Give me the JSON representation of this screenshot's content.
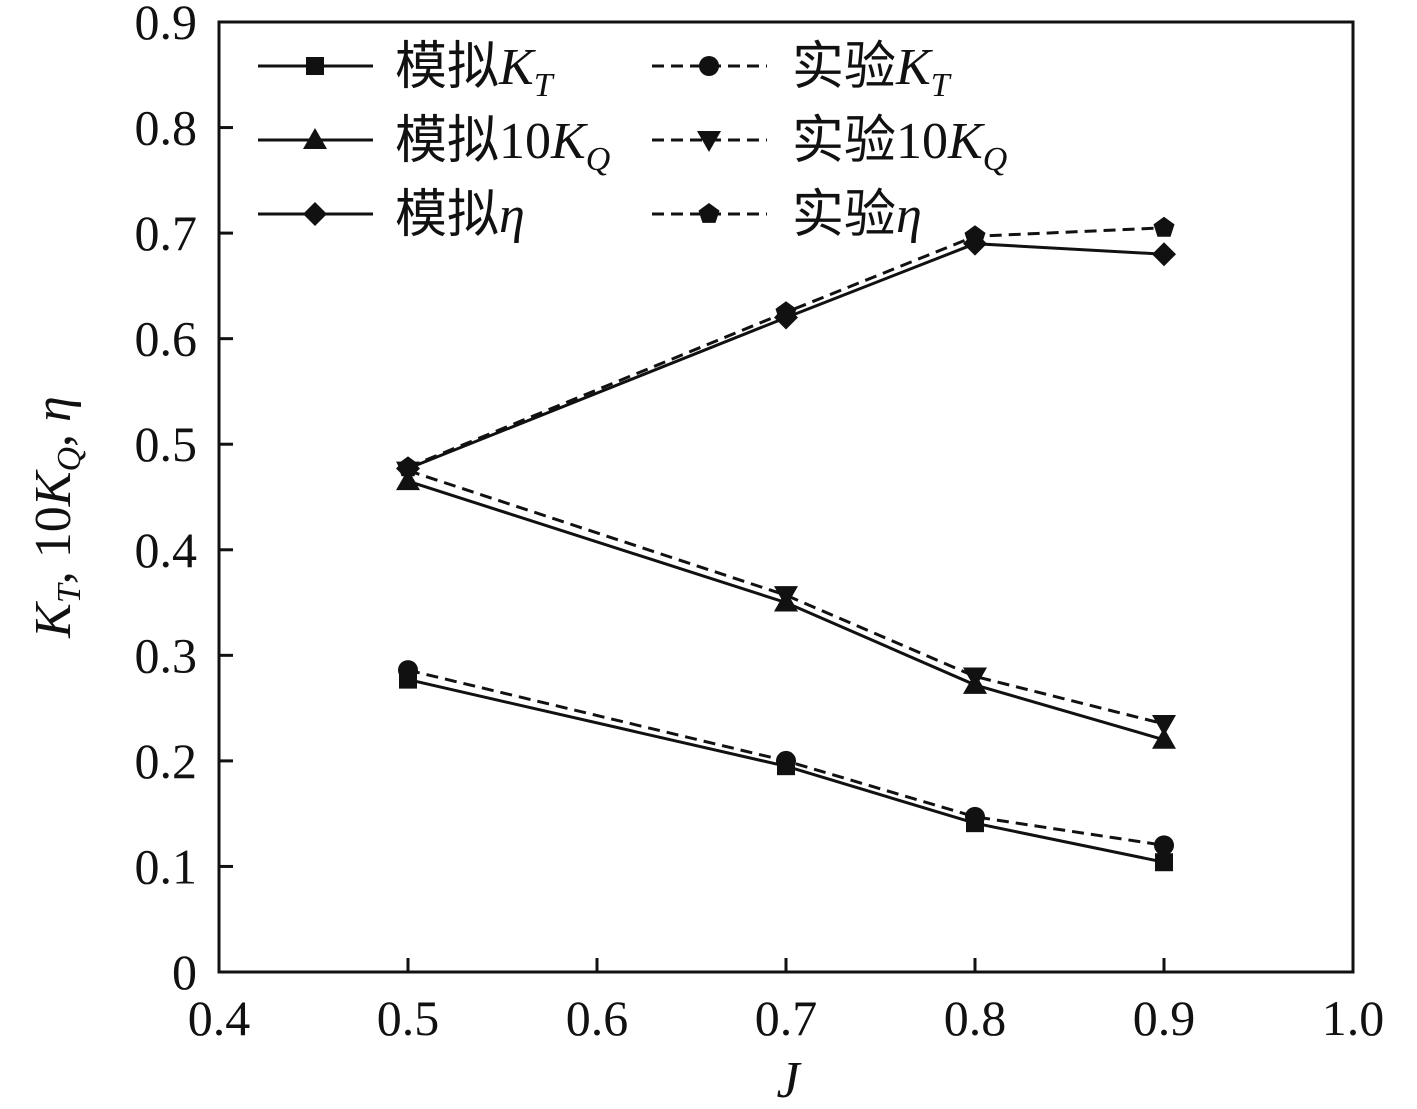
{
  "chart_data": {
    "type": "line",
    "title": "",
    "xlabel": "J",
    "ylabel": {
      "k": "K",
      "t": "T",
      "mid": ", 10",
      "k2": "K",
      "q": "Q",
      "comma": ",",
      "eta": "η"
    },
    "xlim": [
      0.4,
      1.0
    ],
    "ylim": [
      0,
      0.9
    ],
    "xticks": [
      "0.4",
      "0.5",
      "0.6",
      "0.7",
      "0.8",
      "0.9",
      "1.0"
    ],
    "yticks": [
      "0",
      "0.1",
      "0.2",
      "0.3",
      "0.4",
      "0.5",
      "0.6",
      "0.7",
      "0.8",
      "0.9"
    ],
    "x": [
      0.5,
      0.7,
      0.8,
      0.9
    ],
    "series": [
      {
        "id": "sim-kt",
        "name": "模拟K_T",
        "label": {
          "zh": "模拟",
          "it": "K",
          "sub": "T"
        },
        "style": "solid",
        "marker": "square",
        "color": "#111111",
        "values": [
          0.277,
          0.195,
          0.141,
          0.104
        ]
      },
      {
        "id": "exp-kt",
        "name": "实验K_T",
        "label": {
          "zh": "实验",
          "it": "K",
          "sub": "T"
        },
        "style": "dashed",
        "marker": "circle",
        "color": "#111111",
        "values": [
          0.286,
          0.2,
          0.147,
          0.12
        ]
      },
      {
        "id": "sim-10kq",
        "name": "模拟10K_Q",
        "label": {
          "zh": "模拟10",
          "it": "K",
          "sub": "Q"
        },
        "style": "solid",
        "marker": "triangle-up",
        "color": "#111111",
        "values": [
          0.465,
          0.35,
          0.272,
          0.22
        ]
      },
      {
        "id": "exp-10kq",
        "name": "实验10K_Q",
        "label": {
          "zh": "实验10",
          "it": "K",
          "sub": "Q"
        },
        "style": "dashed",
        "marker": "triangle-down",
        "color": "#111111",
        "values": [
          0.475,
          0.357,
          0.28,
          0.235
        ]
      },
      {
        "id": "sim-eta",
        "name": "模拟η",
        "label": {
          "zh": "模拟",
          "it": "η",
          "sub": ""
        },
        "style": "solid",
        "marker": "diamond",
        "color": "#111111",
        "values": [
          0.477,
          0.62,
          0.69,
          0.68
        ]
      },
      {
        "id": "exp-eta",
        "name": "实验η",
        "label": {
          "zh": "实验",
          "it": "η",
          "sub": ""
        },
        "style": "dashed",
        "marker": "pentagon",
        "color": "#111111",
        "values": [
          0.478,
          0.625,
          0.697,
          0.705
        ]
      }
    ],
    "legend": {
      "placement": "top-left",
      "columns": 2
    }
  }
}
